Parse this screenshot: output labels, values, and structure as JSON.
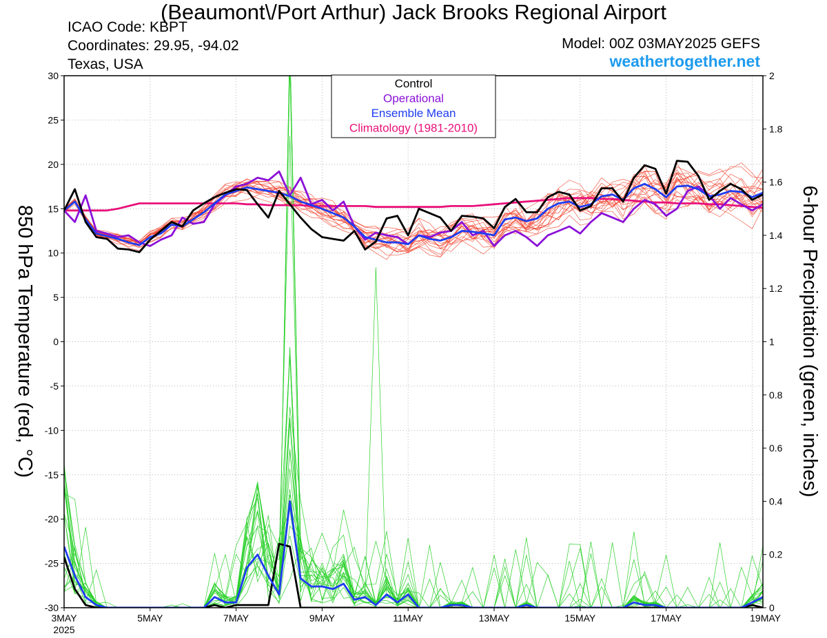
{
  "header": {
    "title": "(Beaumont\\/Port Arthur) Jack Brooks Regional Airport",
    "icao": "ICAO Code: KBPT",
    "coordinates": "Coordinates: 29.95, -94.02",
    "region": "Texas, USA",
    "model": "Model: 00Z 03MAY2025 GEFS",
    "site": "weathertogether.net"
  },
  "colors": {
    "control": "#000000",
    "operational": "#8b10d8",
    "ensemble_mean": "#1e3cf0",
    "climatology": "#e8107a",
    "members_temp": "#f0402a",
    "members_precip": "#28d028",
    "site_link": "#1e9bef"
  },
  "chart_data": {
    "type": "line",
    "x_tick_labels": [
      "3MAY",
      "5MAY",
      "7MAY",
      "9MAY",
      "11MAY",
      "13MAY",
      "15MAY",
      "17MAY",
      "19MAY"
    ],
    "x_year_label": "2025",
    "x_start": "2025-05-03T00Z",
    "x_step_hours": 6,
    "left_axis": {
      "label": "850 hPa Temperature (red, °C)",
      "ylim": [
        -30,
        30
      ],
      "ticks": [
        30,
        25,
        20,
        15,
        10,
        5,
        0,
        -5,
        -10,
        -15,
        -20,
        -25,
        -30
      ]
    },
    "right_axis": {
      "label": "6-hour Precipitation (green, inches)",
      "ylim": [
        0,
        2
      ],
      "ticks": [
        2,
        1.8,
        1.6,
        1.4,
        1.2,
        1,
        0.8,
        0.6,
        0.4,
        0.2,
        0
      ]
    },
    "legend": {
      "position": "top-center",
      "entries": [
        "Control",
        "Operational",
        "Ensemble Mean",
        "Climatology (1981-2010)"
      ]
    },
    "grid": "vertical dotted at day ticks, horizontal dotted at temperature ticks",
    "series": [
      {
        "name": "Control",
        "axis": "left",
        "values": [
          14.8,
          17.2,
          13.5,
          11.8,
          11.6,
          10.5,
          10.4,
          10.1,
          11.5,
          12.5,
          13.5,
          13.0,
          14.8,
          15.6,
          16.3,
          16.8,
          17.2,
          17.1,
          15.5,
          14.0,
          17.0,
          15.5,
          14.0,
          12.7,
          11.8,
          11.6,
          11.4,
          12.5,
          10.4,
          11.3,
          13.9,
          14.2,
          12.0,
          15.0,
          14.5,
          14.0,
          12.5,
          14.2,
          14.1,
          13.9,
          12.8,
          15.2,
          16.1,
          14.6,
          14.6,
          16.3,
          16.9,
          16.6,
          14.8,
          15.3,
          17.3,
          17.3,
          15.8,
          18.5,
          19.9,
          19.5,
          16.7,
          20.4,
          20.3,
          18.7,
          16.0,
          17.0,
          17.8,
          17.2,
          16.0,
          16.6
        ]
      },
      {
        "name": "Operational",
        "axis": "left",
        "values": [
          14.8,
          13.5,
          16.5,
          12.5,
          12.2,
          11.8,
          12.0,
          11.2,
          10.8,
          11.5,
          12.0,
          14.0,
          13.3,
          13.5,
          15.5,
          16.5,
          17.5,
          17.8,
          18.5,
          18.2,
          19.2,
          16.5,
          18.5,
          15.5,
          16.0,
          14.8,
          15.8,
          13.0,
          11.5,
          12.3,
          12.0,
          11.8,
          11.0,
          12.0,
          11.8,
          12.3,
          12.5,
          13.5,
          12.0,
          12.5,
          10.8,
          12.0,
          12.5,
          11.8,
          10.8,
          12.0,
          12.5,
          13.0,
          12.2,
          13.5,
          14.5,
          14.0,
          13.5,
          15.0,
          16.0,
          15.5,
          14.2,
          15.0,
          17.0,
          17.5,
          16.5,
          15.0,
          16.2,
          15.5,
          14.8,
          15.5
        ]
      },
      {
        "name": "Ensemble Mean",
        "axis": "left",
        "values": [
          14.8,
          15.8,
          13.8,
          12.2,
          11.9,
          11.6,
          11.2,
          10.9,
          11.8,
          12.2,
          13.2,
          13.0,
          13.8,
          14.6,
          15.6,
          16.6,
          17.0,
          17.4,
          17.2,
          17.0,
          16.8,
          16.4,
          15.8,
          15.4,
          15.0,
          14.5,
          14.0,
          13.0,
          11.8,
          11.5,
          11.2,
          11.2,
          11.0,
          12.0,
          11.6,
          11.4,
          11.8,
          12.5,
          12.4,
          12.2,
          12.0,
          13.8,
          14.0,
          13.6,
          13.9,
          15.0,
          15.6,
          15.8,
          15.2,
          15.5,
          16.4,
          16.6,
          16.0,
          17.3,
          17.8,
          17.2,
          16.3,
          17.5,
          17.6,
          17.2,
          16.4,
          16.6,
          17.0,
          16.9,
          16.3,
          16.8
        ]
      },
      {
        "name": "Climatology (1981-2010)",
        "axis": "left",
        "values": [
          14.8,
          14.8,
          14.8,
          14.8,
          14.8,
          15.0,
          15.3,
          15.6,
          15.6,
          15.6,
          15.6,
          15.6,
          15.6,
          15.6,
          15.6,
          15.6,
          15.6,
          15.5,
          15.5,
          15.4,
          15.4,
          15.4,
          15.4,
          15.3,
          15.3,
          15.3,
          15.3,
          15.3,
          15.3,
          15.2,
          15.2,
          15.2,
          15.2,
          15.2,
          15.2,
          15.2,
          15.3,
          15.3,
          15.3,
          15.4,
          15.5,
          15.6,
          15.7,
          15.8,
          15.9,
          16.0,
          16.1,
          16.2,
          16.2,
          16.2,
          16.1,
          16.1,
          16.0,
          15.9,
          15.8,
          15.7,
          15.7,
          15.6,
          15.6,
          15.6,
          15.5,
          15.5,
          15.4,
          15.3,
          15.2,
          15.1
        ]
      },
      {
        "name": "Control",
        "axis": "right",
        "values": [
          0.19,
          0.07,
          0.01,
          0,
          0,
          0,
          0,
          0,
          0,
          0,
          0,
          0,
          0,
          0,
          0.01,
          0,
          0.01,
          0.01,
          0.01,
          0.01,
          0.24,
          0.23,
          0.0,
          0,
          0,
          0,
          0,
          0,
          0,
          0,
          0,
          0,
          0,
          0,
          0,
          0,
          0,
          0,
          0,
          0,
          0,
          0,
          0,
          0,
          0,
          0,
          0,
          0,
          0,
          0,
          0,
          0,
          0,
          0,
          0,
          0,
          0,
          0,
          0,
          0,
          0,
          0,
          0,
          0,
          0.01,
          0
        ]
      },
      {
        "name": "Ensemble Mean",
        "axis": "right",
        "values": [
          0.23,
          0.12,
          0.04,
          0.01,
          0,
          0,
          0,
          0,
          0,
          0,
          0,
          0,
          0,
          0,
          0.04,
          0.02,
          0.02,
          0.15,
          0.2,
          0.12,
          0.05,
          0.4,
          0.11,
          0.08,
          0.08,
          0.07,
          0.09,
          0.03,
          0.04,
          0.01,
          0.05,
          0.02,
          0.05,
          0,
          0,
          0,
          0.01,
          0.01,
          0,
          0,
          0,
          0,
          0,
          0.01,
          0,
          0,
          0,
          0,
          0,
          0,
          0,
          0,
          0,
          0.02,
          0.01,
          0.01,
          0,
          0,
          0,
          0,
          0,
          0,
          0,
          0,
          0.02,
          0.04
        ]
      }
    ]
  }
}
